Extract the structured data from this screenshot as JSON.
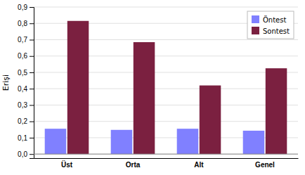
{
  "chart_data": {
    "type": "bar",
    "ylabel": "Erişi",
    "categories": [
      "Üst",
      "Orta",
      "Alt",
      "Genel"
    ],
    "series": [
      {
        "name": "Öntest",
        "color": "#8080FF",
        "values": [
          0.155,
          0.148,
          0.155,
          0.143
        ]
      },
      {
        "name": "Sontest",
        "color": "#7B2040",
        "values": [
          0.815,
          0.685,
          0.42,
          0.525
        ]
      }
    ],
    "ylim": [
      -0.025,
      0.9
    ],
    "yticks": [
      {
        "value": 0,
        "label": "0,0"
      },
      {
        "value": 0.1,
        "label": "0,1"
      },
      {
        "value": 0.2,
        "label": "0,2"
      },
      {
        "value": 0.3,
        "label": "0,3"
      },
      {
        "value": 0.4,
        "label": "0,4"
      },
      {
        "value": 0.5,
        "label": "0,5"
      },
      {
        "value": 0.6,
        "label": "0,6"
      },
      {
        "value": 0.7,
        "label": "0,7"
      },
      {
        "value": 0.8,
        "label": "0,8"
      },
      {
        "value": 0.9,
        "label": "0,9"
      }
    ],
    "grid": true,
    "legend": "upper right"
  }
}
